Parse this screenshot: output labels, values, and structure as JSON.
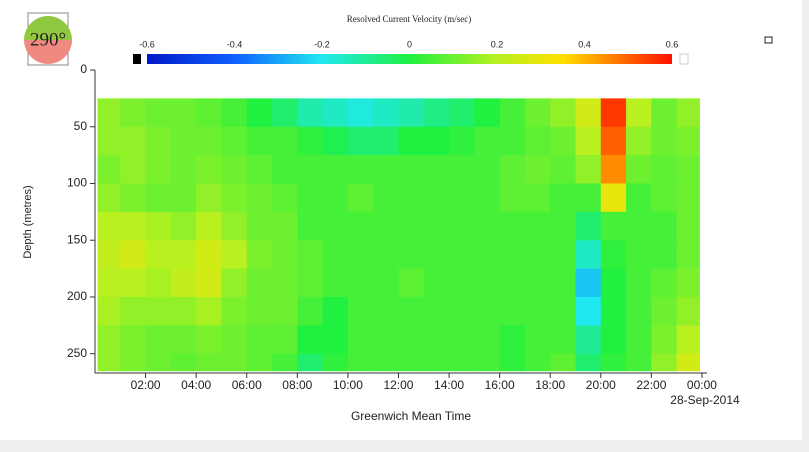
{
  "chart_data": {
    "type": "heatmap",
    "title": "Resolved Current Velocity (m/sec)",
    "heading": "290°",
    "xlabel": "Greenwich Mean Time",
    "ylabel": "Depth (metres)",
    "date_label": "28-Sep-2014",
    "xlim": [
      0,
      24.2
    ],
    "xticks": [
      {
        "value": 2,
        "label": "02:00"
      },
      {
        "value": 4,
        "label": "04:00"
      },
      {
        "value": 6,
        "label": "06:00"
      },
      {
        "value": 8,
        "label": "08:00"
      },
      {
        "value": 10,
        "label": "10:00"
      },
      {
        "value": 12,
        "label": "12:00"
      },
      {
        "value": 14,
        "label": "14:00"
      },
      {
        "value": 16,
        "label": "16:00"
      },
      {
        "value": 18,
        "label": "18:00"
      },
      {
        "value": 20,
        "label": "20:00"
      },
      {
        "value": 22,
        "label": "22:00"
      },
      {
        "value": 24,
        "label": "00:00"
      }
    ],
    "ylim": [
      0,
      267
    ],
    "yticks": [
      0,
      50,
      100,
      150,
      200,
      250
    ],
    "y_inverted": true,
    "clim": [
      -0.6,
      0.6
    ],
    "cticks": [
      -0.6,
      -0.4,
      -0.2,
      0,
      0.2,
      0.4,
      0.6
    ],
    "colorscale": [
      {
        "value": -0.6,
        "color": "#0018c8"
      },
      {
        "value": -0.4,
        "color": "#1060ff"
      },
      {
        "value": -0.2,
        "color": "#20e8f0"
      },
      {
        "value": 0,
        "color": "#20f040"
      },
      {
        "value": 0.2,
        "color": "#b8f020"
      },
      {
        "value": 0.35,
        "color": "#ffe000"
      },
      {
        "value": 0.5,
        "color": "#ff6000"
      },
      {
        "value": 0.6,
        "color": "#ff1000"
      }
    ],
    "under_color": "#000000",
    "over_color": "#ffffff",
    "x_bins": [
      0.1,
      1,
      2,
      3,
      4,
      5,
      6,
      7,
      8,
      9,
      10,
      11,
      12,
      13,
      14,
      15,
      16,
      17,
      18,
      19,
      20,
      21,
      22,
      23,
      23.9
    ],
    "y_bins": [
      25,
      50,
      75,
      100,
      125,
      150,
      175,
      200,
      225,
      250,
      265
    ],
    "values": [
      [
        0.15,
        0.12,
        0.1,
        0.1,
        0.08,
        0.05,
        0.0,
        -0.05,
        -0.12,
        -0.15,
        -0.18,
        -0.15,
        -0.12,
        -0.08,
        -0.05,
        0.0,
        0.05,
        0.1,
        0.15,
        0.25,
        0.55,
        0.2,
        0.1,
        0.15
      ],
      [
        0.15,
        0.15,
        0.12,
        0.1,
        0.1,
        0.08,
        0.05,
        0.05,
        0.02,
        -0.02,
        -0.05,
        -0.05,
        0.0,
        0.0,
        0.02,
        0.05,
        0.05,
        0.08,
        0.1,
        0.2,
        0.5,
        0.15,
        0.1,
        0.12
      ],
      [
        0.12,
        0.15,
        0.12,
        0.1,
        0.12,
        0.1,
        0.08,
        0.05,
        0.05,
        0.05,
        0.05,
        0.05,
        0.05,
        0.05,
        0.05,
        0.05,
        0.08,
        0.1,
        0.08,
        0.15,
        0.45,
        0.1,
        0.08,
        0.1
      ],
      [
        0.15,
        0.12,
        0.1,
        0.1,
        0.15,
        0.12,
        0.1,
        0.08,
        0.05,
        0.05,
        0.08,
        0.05,
        0.05,
        0.05,
        0.05,
        0.05,
        0.08,
        0.08,
        0.05,
        0.05,
        0.3,
        0.05,
        0.08,
        0.1
      ],
      [
        0.2,
        0.2,
        0.18,
        0.15,
        0.2,
        0.15,
        0.1,
        0.1,
        0.05,
        0.05,
        0.05,
        0.05,
        0.05,
        0.05,
        0.05,
        0.05,
        0.05,
        0.05,
        0.05,
        -0.05,
        0.05,
        0.05,
        0.05,
        0.1
      ],
      [
        0.22,
        0.25,
        0.2,
        0.2,
        0.25,
        0.2,
        0.12,
        0.1,
        0.08,
        0.05,
        0.05,
        0.05,
        0.05,
        0.05,
        0.05,
        0.05,
        0.05,
        0.05,
        0.05,
        -0.15,
        0.02,
        0.05,
        0.05,
        0.1
      ],
      [
        0.2,
        0.2,
        0.18,
        0.22,
        0.25,
        0.15,
        0.1,
        0.1,
        0.08,
        0.05,
        0.05,
        0.05,
        0.08,
        0.05,
        0.05,
        0.05,
        0.05,
        0.05,
        0.05,
        -0.25,
        0.0,
        0.05,
        0.08,
        0.12
      ],
      [
        0.18,
        0.15,
        0.15,
        0.15,
        0.18,
        0.12,
        0.1,
        0.1,
        0.05,
        0.0,
        0.05,
        0.05,
        0.05,
        0.05,
        0.05,
        0.05,
        0.05,
        0.05,
        0.05,
        -0.2,
        0.0,
        0.05,
        0.1,
        0.15
      ],
      [
        0.15,
        0.12,
        0.1,
        0.1,
        0.12,
        0.1,
        0.08,
        0.08,
        0.0,
        0.0,
        0.05,
        0.05,
        0.05,
        0.05,
        0.05,
        0.05,
        0.02,
        0.05,
        0.05,
        -0.1,
        0.0,
        0.05,
        0.12,
        0.2
      ],
      [
        0.15,
        0.12,
        0.1,
        0.08,
        0.1,
        0.1,
        0.08,
        0.05,
        -0.05,
        0.02,
        0.05,
        0.05,
        0.05,
        0.05,
        0.05,
        0.05,
        0.02,
        0.05,
        0.08,
        -0.05,
        0.02,
        0.05,
        0.15,
        0.25
      ]
    ]
  }
}
